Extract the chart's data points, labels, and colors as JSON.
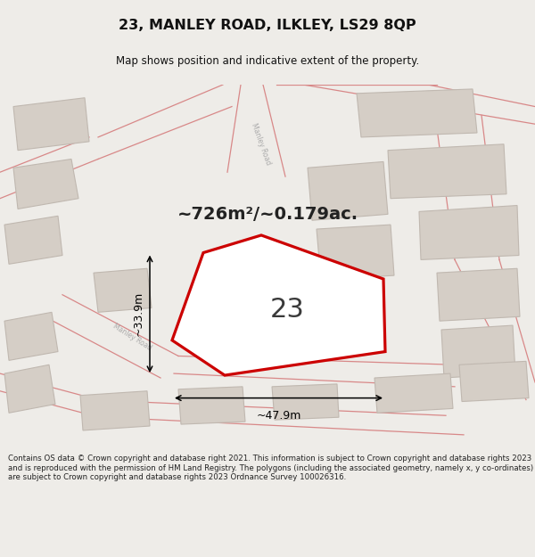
{
  "title": "23, MANLEY ROAD, ILKLEY, LS29 8QP",
  "subtitle": "Map shows position and indicative extent of the property.",
  "area_text": "~726m²/~0.179ac.",
  "dim_width": "~47.9m",
  "dim_height": "~33.9m",
  "number_label": "23",
  "footer": "Contains OS data © Crown copyright and database right 2021. This information is subject to Crown copyright and database rights 2023 and is reproduced with the permission of HM Land Registry. The polygons (including the associated geometry, namely x, y co-ordinates) are subject to Crown copyright and database rights 2023 Ordnance Survey 100026316.",
  "bg_color": "#eeece8",
  "road_line_color": "#d88888",
  "building_color": "#d5cec6",
  "building_outline": "#c0b8b0",
  "plot_fill": "#ffffff",
  "plot_outline": "#cc0000",
  "text_color": "#222222",
  "footer_color": "#222222",
  "road_label_color": "#aaaaaa",
  "title_color": "#111111",
  "dim_color": "#000000"
}
